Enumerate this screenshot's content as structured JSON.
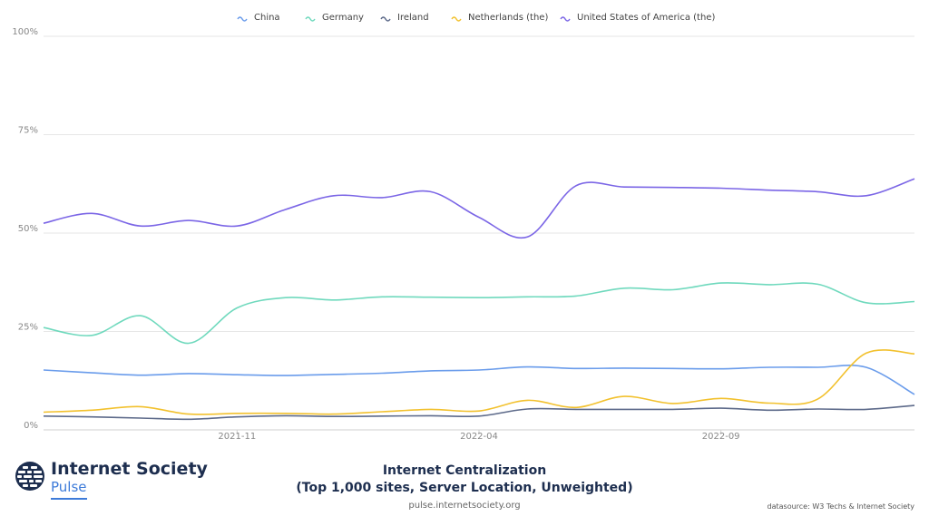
{
  "chart_data": {
    "type": "line",
    "title": "Internet Centralization",
    "subtitle": "(Top 1,000 sites, Server Location, Unweighted)",
    "xlabel": "",
    "ylabel": "",
    "ylim": [
      0,
      100
    ],
    "y_ticks": [
      "0%",
      "25%",
      "50%",
      "75%",
      "100%"
    ],
    "x_ticks": [
      "2021-11",
      "2022-04",
      "2022-09"
    ],
    "x": [
      "2021-07",
      "2021-08",
      "2021-09",
      "2021-10",
      "2021-11",
      "2021-12",
      "2022-01",
      "2022-02",
      "2022-03",
      "2022-04",
      "2022-05",
      "2022-06",
      "2022-07",
      "2022-08",
      "2022-09",
      "2022-10",
      "2022-11",
      "2022-12",
      "2023-01"
    ],
    "grid": true,
    "legend": "top",
    "series": [
      {
        "name": "China",
        "color": "#6a9ceb",
        "values": [
          15.2,
          14.5,
          13.9,
          14.3,
          14.0,
          13.8,
          14.1,
          14.4,
          15.0,
          15.2,
          16.0,
          15.6,
          15.7,
          15.6,
          15.5,
          15.9,
          15.9,
          15.9,
          9.0
        ]
      },
      {
        "name": "Germany",
        "color": "#6fd9bd",
        "values": [
          26.0,
          24.0,
          29.0,
          22.0,
          31.0,
          33.6,
          33.0,
          33.8,
          33.7,
          33.6,
          33.8,
          34.0,
          36.0,
          35.6,
          37.3,
          36.9,
          37.0,
          32.3,
          32.6
        ]
      },
      {
        "name": "Ireland",
        "color": "#5d6a8a",
        "values": [
          3.5,
          3.3,
          3.0,
          2.7,
          3.3,
          3.6,
          3.4,
          3.5,
          3.6,
          3.5,
          5.3,
          5.2,
          5.2,
          5.2,
          5.5,
          5.0,
          5.3,
          5.2,
          6.2
        ]
      },
      {
        "name": "Netherlands (the)",
        "color": "#f2c12e",
        "values": [
          4.5,
          5.0,
          5.9,
          4.0,
          4.2,
          4.2,
          4.0,
          4.6,
          5.2,
          4.8,
          7.5,
          5.7,
          8.5,
          6.7,
          8.0,
          6.8,
          7.8,
          19.5,
          19.3
        ]
      },
      {
        "name": "United States of America (the)",
        "color": "#7b66e6",
        "values": [
          52.5,
          55.0,
          51.8,
          53.2,
          51.8,
          56.0,
          59.5,
          59.0,
          60.5,
          54.0,
          49.0,
          62.0,
          61.7,
          61.6,
          61.4,
          60.9,
          60.5,
          59.5,
          63.8
        ]
      }
    ]
  },
  "branding": {
    "name": "Internet Society",
    "product": "Pulse",
    "url": "pulse.internetsociety.org",
    "datasource": "datasource: W3 Techs & Internet Society"
  }
}
